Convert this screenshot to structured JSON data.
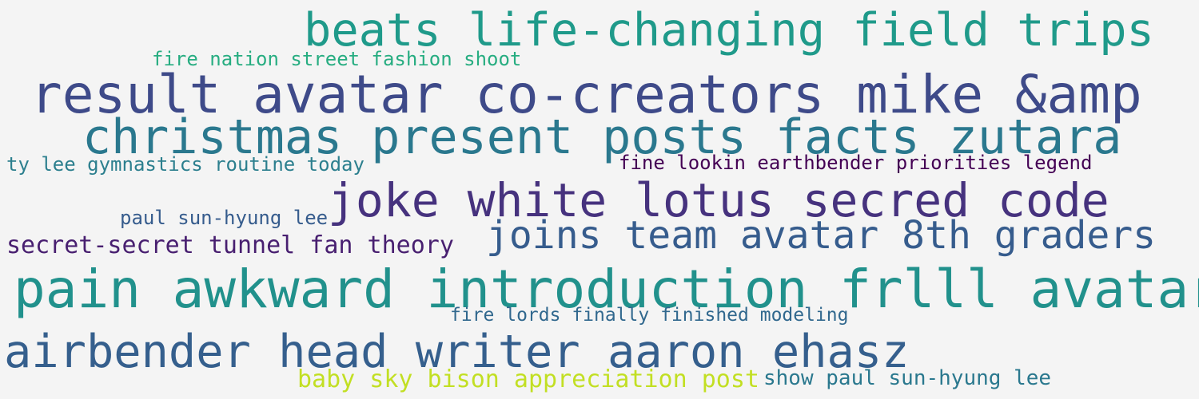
{
  "background_color": "#f4f4f4",
  "phrases": [
    {
      "text": "beats life-changing field trips",
      "color": "#1f9a8a"
    },
    {
      "text": "fire nation street fashion shoot",
      "color": "#27ad81"
    },
    {
      "text": "result avatar co-creators mike &amp",
      "color": "#3e4a89"
    },
    {
      "text": "christmas present posts facts zutara",
      "color": "#2a788e"
    },
    {
      "text": "ty lee gymnastics routine today",
      "color": "#2c7f8e"
    },
    {
      "text": "fine lookin earthbender priorities legend",
      "color": "#440154"
    },
    {
      "text": "joke white lotus secred code",
      "color": "#46327e"
    },
    {
      "text": "paul sun-hyung lee",
      "color": "#365c8d"
    },
    {
      "text": "joins team avatar 8th graders",
      "color": "#365c8d"
    },
    {
      "text": "secret-secret tunnel fan theory",
      "color": "#481f70"
    },
    {
      "text": "pain awkward introduction frlll avatar",
      "color": "#21918c"
    },
    {
      "text": "fire lords finally finished modeling",
      "color": "#31688e"
    },
    {
      "text": "airbender head writer aaron ehasz",
      "color": "#355f8d"
    },
    {
      "text": "baby sky bison appreciation post",
      "color": "#c2df23"
    },
    {
      "text": "show paul sun-hyung lee",
      "color": "#2a788e"
    }
  ]
}
